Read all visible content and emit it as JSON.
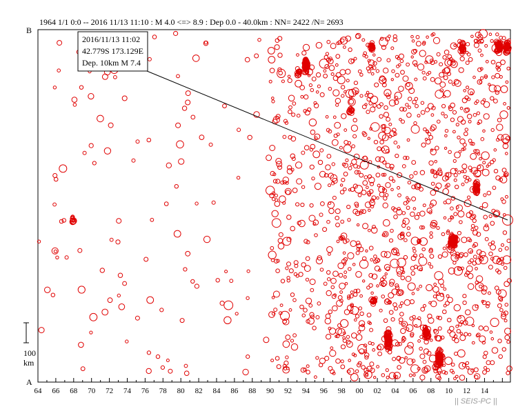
{
  "header": {
    "title": "1964 1/1 0:0 -- 2016 11/13 11:10  : M 4.0 <=> 8.9   :  Dep 0.0 - 40.0km :  NN= 2422 /N= 2693"
  },
  "axis": {
    "top_label": "B",
    "bottom_label": "A",
    "scale_value": "100",
    "scale_unit": "km"
  },
  "info_box": {
    "line1": "2016/11/13 11:02",
    "line2": "42.779S   173.129E",
    "line3": "Dep. 10km    M 7.4"
  },
  "watermark": "|| SEIS-PC ||",
  "colors": {
    "quake": "#e00000",
    "axis": "#000000"
  },
  "chart_data": {
    "type": "scatter",
    "title": "1964 1/1 0:0 -- 2016 11/13 11:10  : M 4.0 <=> 8.9   :  Dep 0.0 - 40.0km :  NN= 2422 /N= 2693",
    "xlabel": "",
    "ylabel": "",
    "x_ticks": [
      "64",
      "66",
      "68",
      "70",
      "72",
      "74",
      "76",
      "78",
      "80",
      "82",
      "84",
      "86",
      "88",
      "90",
      "92",
      "94",
      "96",
      "98",
      "00",
      "02",
      "04",
      "06",
      "08",
      "10",
      "12",
      "14"
    ],
    "x_range": [
      1964,
      2016.9
    ],
    "y_range": [
      0,
      100
    ],
    "y_axis_ends": {
      "bottom": "A",
      "top": "B"
    },
    "scale_bar_km": 100,
    "grid": false,
    "highlight_event": {
      "date": "2016/11/13 11:02",
      "lat": "42.779S",
      "lon": "173.129E",
      "depth_km": 10,
      "magnitude": 7.4
    },
    "events_shown": 2422,
    "events_total": 2693,
    "clusters_note": "Dense activity after 1992; notable sequences near 1994, 2003, 2007, 2009-2011, 2013, 2015-2016"
  }
}
